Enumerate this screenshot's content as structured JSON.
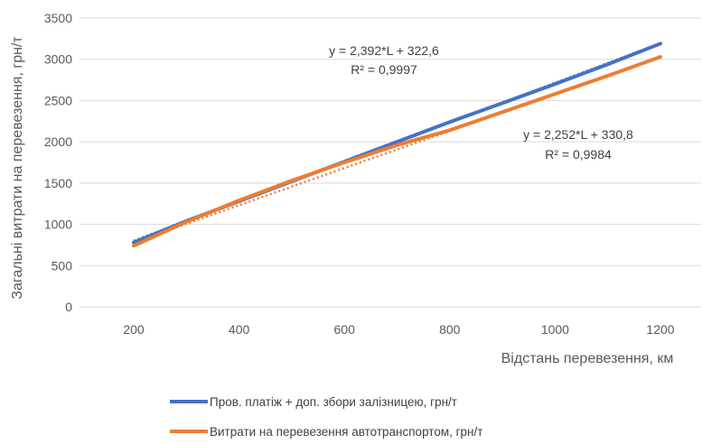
{
  "chart_data": {
    "type": "line",
    "xlabel": "Відстань перевезення,  км",
    "ylabel": "Загальні витрати на перевезення, грн/т",
    "x": [
      200,
      300,
      400,
      500,
      600,
      700,
      800,
      900,
      1000,
      1100,
      1200
    ],
    "xticks": [
      200,
      400,
      600,
      800,
      1000,
      1200
    ],
    "yticks": [
      0,
      500,
      1000,
      1500,
      2000,
      2500,
      3000,
      3500
    ],
    "ylim": [
      0,
      3500
    ],
    "grid": true,
    "legend_position": "bottom",
    "series": [
      {
        "name": "Пров. платіж + доп. збори залізницею, грн/т",
        "color": "#4472C4",
        "values": [
          780,
          1040,
          1280,
          1520,
          1760,
          2000,
          2240,
          2470,
          2700,
          2940,
          3190
        ],
        "trendline": {
          "equation": "y = 2,392*L + 322,6",
          "r2": "R² = 0,9997",
          "slope": 2.392,
          "intercept": 322.6
        }
      },
      {
        "name": "Витрати на перевезення  автотранспортом, грн/т",
        "color": "#ED7D31",
        "values": [
          740,
          1030,
          1290,
          1530,
          1750,
          1960,
          2140,
          2360,
          2580,
          2800,
          3030
        ],
        "trendline": {
          "equation": "y = 2,252*L + 330,8",
          "r2": "R² = 0,9984",
          "slope": 2.252,
          "intercept": 330.8
        }
      }
    ]
  }
}
